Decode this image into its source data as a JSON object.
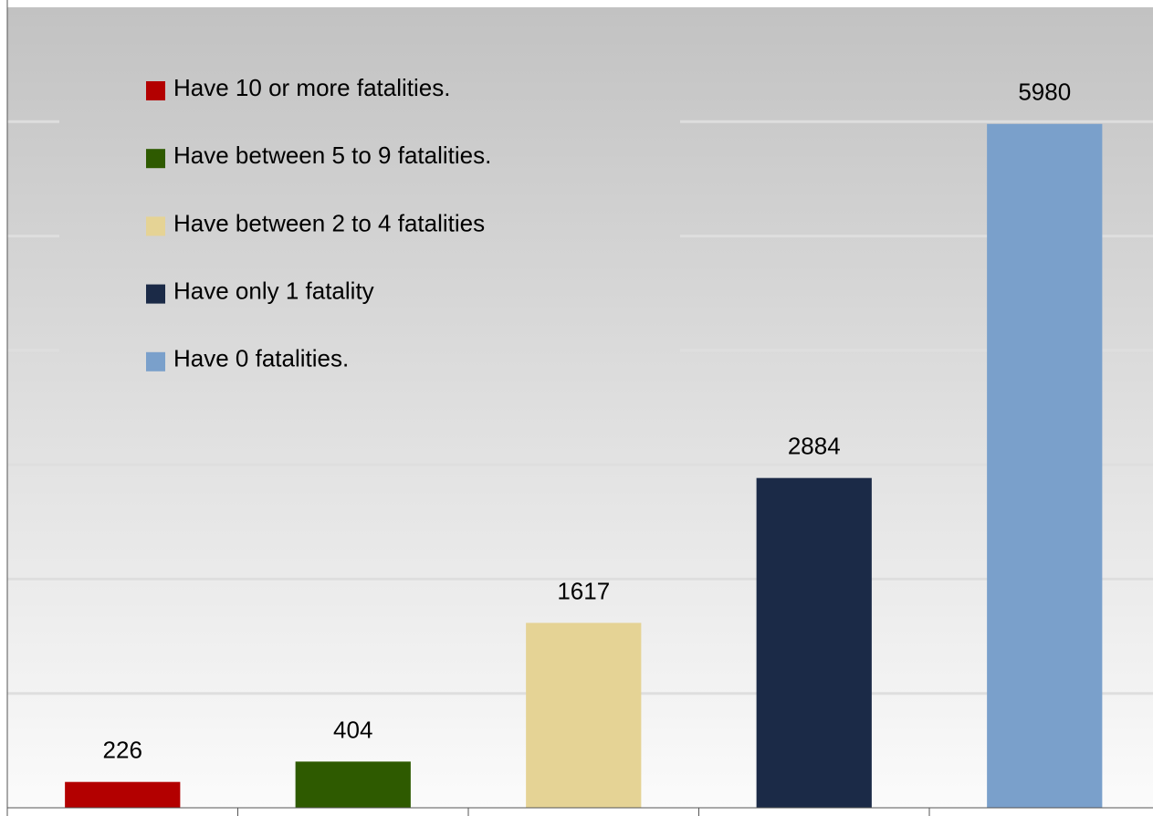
{
  "chart_data": {
    "type": "bar",
    "categories": [
      null,
      null,
      null,
      null,
      null
    ],
    "values": [
      226,
      404,
      1617,
      2884,
      5980
    ],
    "colors": [
      "#b30000",
      "#2e5a00",
      "#e5d395",
      "#1b2a47",
      "#7aa0cb"
    ],
    "legend_labels": [
      "Have 10 or more fatalities.",
      "Have between 5 to 9 fatalities.",
      "Have between 2 to 4 fatalities",
      "Have only 1 fatality",
      "Have 0 fatalities."
    ],
    "ylim": [
      0,
      7000
    ],
    "yticks": [
      0,
      1000,
      2000,
      3000,
      4000,
      5000,
      6000,
      7000
    ],
    "grid": true
  }
}
